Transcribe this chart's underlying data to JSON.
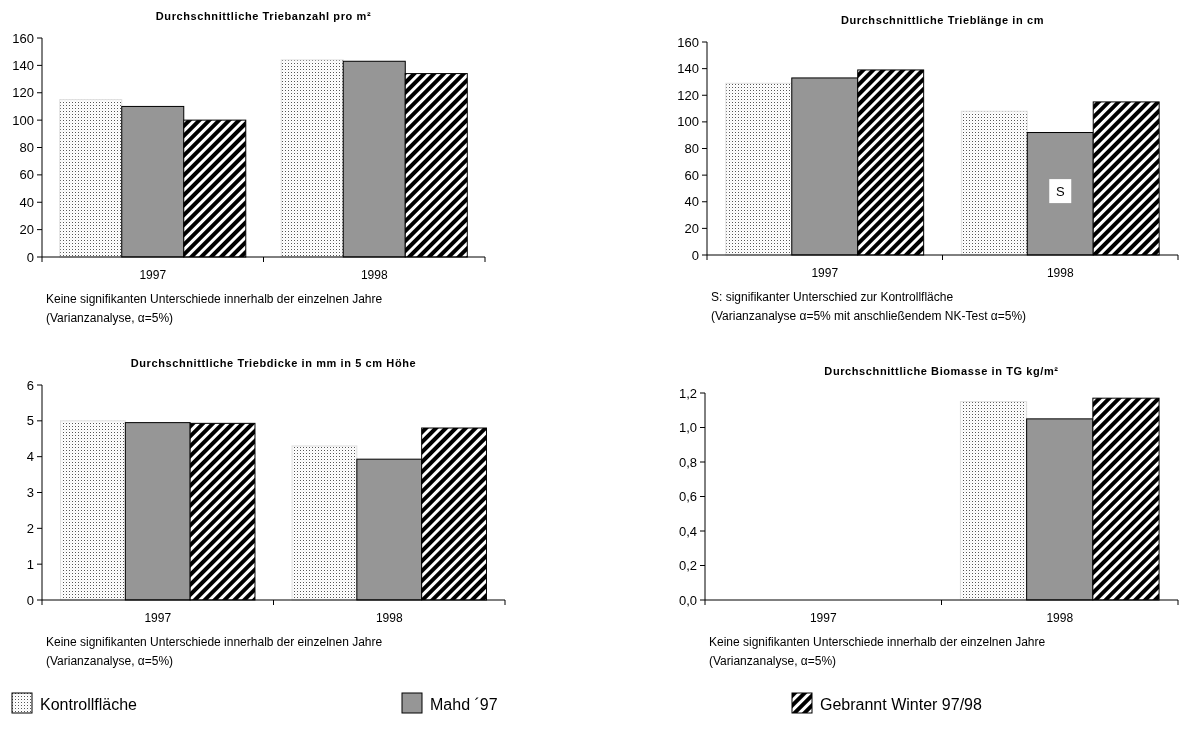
{
  "chart_data": [
    {
      "type": "bar",
      "title": "Durchschnittliche Triebanzahl pro m²",
      "categories": [
        "1997",
        "1998"
      ],
      "series": [
        {
          "name": "Kontrollfläche",
          "color": "#e0e0e0",
          "values": [
            115,
            144
          ]
        },
        {
          "name": "Mahd ´97",
          "color": "#969696",
          "values": [
            110,
            143
          ]
        },
        {
          "name": "Gebrannt Winter 97/98",
          "color": "#000000",
          "values": [
            100,
            134
          ]
        }
      ],
      "ylim": [
        0,
        160
      ],
      "yticks": [
        0,
        20,
        40,
        60,
        80,
        100,
        120,
        140,
        160
      ],
      "legend": "bottom",
      "annotations": [
        "Keine signifikanten Unterschiede innerhalb der einzelnen Jahre (Varianzanalyse, α=5%)"
      ]
    },
    {
      "type": "bar",
      "title": "Durchschnittliche Trieblänge in cm",
      "categories": [
        "1997",
        "1998"
      ],
      "series": [
        {
          "color": "#e0e0e0",
          "values": [
            129,
            108
          ]
        },
        {
          "color": "#969696",
          "values": [
            133,
            92
          ]
        },
        {
          "color": "#000000",
          "values": [
            139,
            115
          ]
        }
      ],
      "ylim": [
        0,
        160
      ],
      "yticks": [
        0,
        20,
        40,
        60,
        80,
        100,
        120,
        140,
        160
      ],
      "annotations": [
        {
          "text": "S",
          "x": "1998",
          "y": 48
        },
        "S: signifikanter Unterschied zur Kontrollfläche (Varianzanalyse α=5% mit anschließendem NK-Test α=5%)"
      ]
    },
    {
      "type": "bar",
      "title": "Durchschnittliche Triebdicke in mm in 5 cm Höhe",
      "categories": [
        "1997",
        "1998"
      ],
      "series": [
        {
          "color": "#e0e0e0",
          "values": [
            5.0,
            4.3
          ]
        },
        {
          "color": "#969696",
          "values": [
            4.95,
            3.93
          ]
        },
        {
          "color": "#000000",
          "values": [
            4.93,
            4.8
          ]
        }
      ],
      "ylim": [
        0,
        6
      ],
      "yticks": [
        0,
        1,
        2,
        3,
        4,
        5,
        6
      ],
      "annotations": [
        "Keine signifikanten Unterschiede innerhalb der einzelnen Jahre (Varianzanalyse, α=5%)"
      ]
    },
    {
      "type": "bar",
      "title": "Durchschnittliche Biomasse in TG kg/m²",
      "categories": [
        "1997",
        "1998"
      ],
      "series": [
        {
          "color": "#e0e0e0",
          "values": [
            null,
            1.15
          ]
        },
        {
          "color": "#969696",
          "values": [
            null,
            1.05
          ]
        },
        {
          "color": "#000000",
          "values": [
            null,
            1.17
          ]
        }
      ],
      "ylim": [
        0,
        1.2
      ],
      "yticks": [
        {
          "value": 0,
          "label": "0,0"
        },
        {
          "value": 0.2,
          "label": "0,2"
        },
        {
          "value": 0.4,
          "label": "0,4"
        },
        {
          "value": 0.6,
          "label": "0,6"
        },
        {
          "value": 0.8,
          "label": "0,8"
        },
        {
          "value": 1.0,
          "label": "1,0"
        },
        {
          "value": 1.2,
          "label": "1,2"
        }
      ],
      "annotations": [
        "Keine signifikanten Unterschiede innerhalb der einzelnen Jahre (Varianzanalyse, α=5%)"
      ]
    }
  ]
}
